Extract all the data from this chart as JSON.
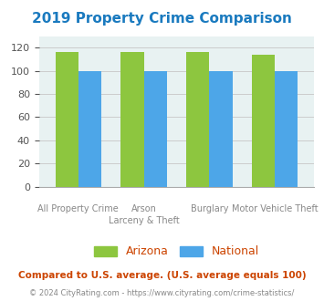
{
  "title": "2019 Property Crime Comparison",
  "title_color": "#1a7abf",
  "x_labels_line1": [
    "All Property Crime",
    "Arson",
    "Burglary",
    "Motor Vehicle Theft"
  ],
  "x_labels_line2": [
    "",
    "Larceny & Theft",
    "",
    ""
  ],
  "arizona_values": [
    116,
    116,
    116,
    114
  ],
  "national_values": [
    100,
    100,
    100,
    100
  ],
  "arizona_color": "#8dc63f",
  "national_color": "#4da6e8",
  "ylim": [
    0,
    130
  ],
  "yticks": [
    0,
    20,
    40,
    60,
    80,
    100,
    120
  ],
  "grid_color": "#cccccc",
  "plot_bg_color": "#e8f2f2",
  "legend_labels": [
    "Arizona",
    "National"
  ],
  "legend_text_color": "#cc4400",
  "footnote1": "Compared to U.S. average. (U.S. average equals 100)",
  "footnote1_color": "#cc4400",
  "footnote2": "© 2024 CityRating.com - https://www.cityrating.com/crime-statistics/",
  "footnote2_color": "#888888",
  "bar_width": 0.35
}
